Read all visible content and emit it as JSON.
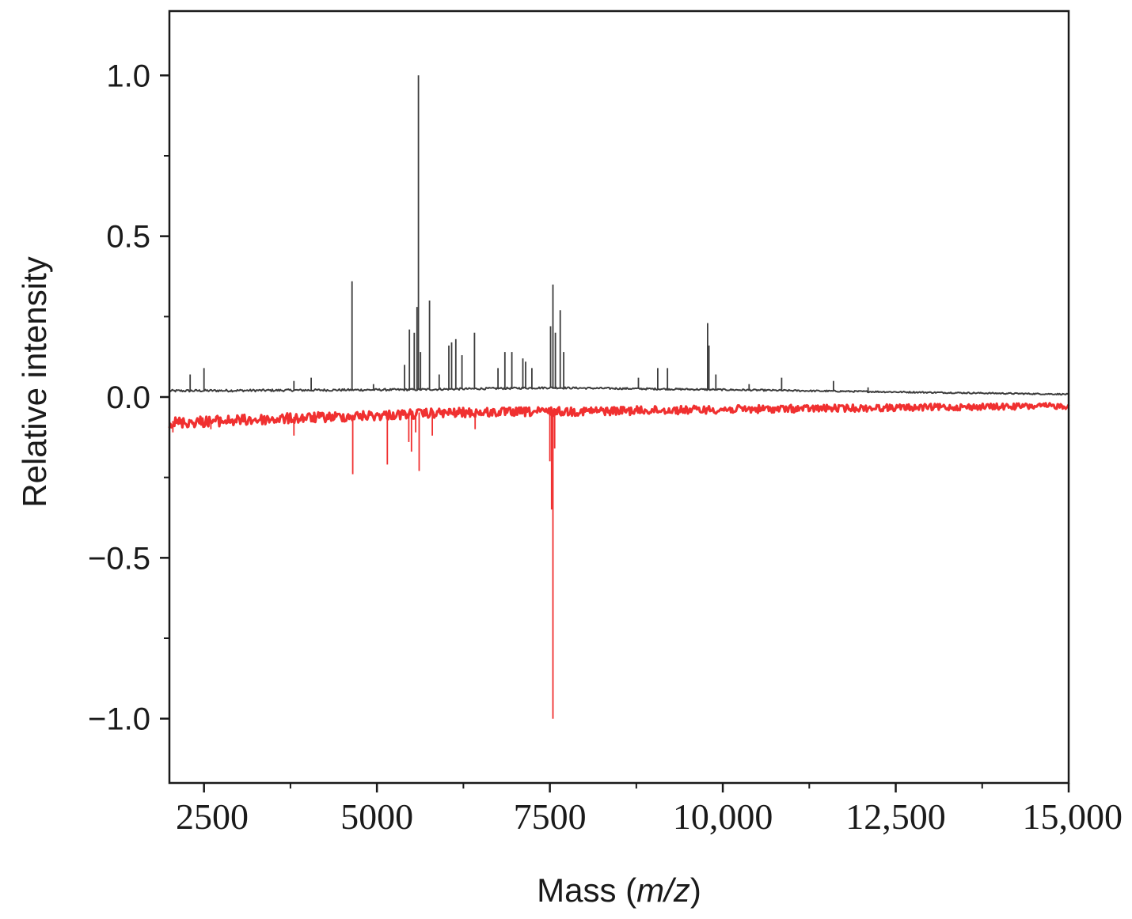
{
  "chart_data": {
    "type": "line",
    "title": "",
    "xlabel": "Mass (m/z)",
    "xlabel_prefix": "Mass (",
    "xlabel_italic": "m/z",
    "xlabel_suffix": ")",
    "ylabel": "Relative intensity",
    "xlim": [
      2000,
      15000
    ],
    "ylim": [
      -1.2,
      1.2
    ],
    "x_ticks": [
      {
        "value": 2500,
        "label": "2500"
      },
      {
        "value": 5000,
        "label": "5000"
      },
      {
        "value": 7500,
        "label": "7500"
      },
      {
        "value": 10000,
        "label": "10,000"
      },
      {
        "value": 12500,
        "label": "12,500"
      },
      {
        "value": 15000,
        "label": "15,000"
      }
    ],
    "x_minor_ticks": [
      3750,
      6250,
      8750,
      11250,
      13750
    ],
    "y_ticks": [
      {
        "value": 1.0,
        "label": "1.0"
      },
      {
        "value": 0.5,
        "label": "0.5"
      },
      {
        "value": 0.0,
        "label": "0.0"
      },
      {
        "value": -0.5,
        "label": "−0.5"
      },
      {
        "value": -1.0,
        "label": "−1.0"
      }
    ],
    "y_minor_ticks": [
      0.75,
      0.25,
      -0.25,
      -0.75
    ],
    "grid": false,
    "legend": "none",
    "series": [
      {
        "color": "#3c3c3c",
        "direction": "up",
        "baseline": [
          [
            2000,
            0.018
          ],
          [
            5500,
            0.022
          ],
          [
            7500,
            0.028
          ],
          [
            10000,
            0.022
          ],
          [
            12500,
            0.015
          ],
          [
            15000,
            0.008
          ]
        ],
        "peaks": [
          {
            "x": 2300,
            "y": 0.07
          },
          {
            "x": 2500,
            "y": 0.09
          },
          {
            "x": 3800,
            "y": 0.05
          },
          {
            "x": 4050,
            "y": 0.06
          },
          {
            "x": 4640,
            "y": 0.36
          },
          {
            "x": 4950,
            "y": 0.04
          },
          {
            "x": 5400,
            "y": 0.1
          },
          {
            "x": 5470,
            "y": 0.21
          },
          {
            "x": 5540,
            "y": 0.2
          },
          {
            "x": 5580,
            "y": 0.28
          },
          {
            "x": 5600,
            "y": 1.0
          },
          {
            "x": 5630,
            "y": 0.14
          },
          {
            "x": 5760,
            "y": 0.3
          },
          {
            "x": 5900,
            "y": 0.07
          },
          {
            "x": 6040,
            "y": 0.16
          },
          {
            "x": 6080,
            "y": 0.17
          },
          {
            "x": 6140,
            "y": 0.18
          },
          {
            "x": 6230,
            "y": 0.13
          },
          {
            "x": 6410,
            "y": 0.2
          },
          {
            "x": 6750,
            "y": 0.09
          },
          {
            "x": 6850,
            "y": 0.14
          },
          {
            "x": 6950,
            "y": 0.14
          },
          {
            "x": 7110,
            "y": 0.12
          },
          {
            "x": 7150,
            "y": 0.11
          },
          {
            "x": 7240,
            "y": 0.09
          },
          {
            "x": 7510,
            "y": 0.22
          },
          {
            "x": 7545,
            "y": 0.35
          },
          {
            "x": 7580,
            "y": 0.2
          },
          {
            "x": 7650,
            "y": 0.27
          },
          {
            "x": 7700,
            "y": 0.14
          },
          {
            "x": 8780,
            "y": 0.06
          },
          {
            "x": 9060,
            "y": 0.09
          },
          {
            "x": 9200,
            "y": 0.09
          },
          {
            "x": 9780,
            "y": 0.23
          },
          {
            "x": 9800,
            "y": 0.16
          },
          {
            "x": 9900,
            "y": 0.07
          },
          {
            "x": 10380,
            "y": 0.04
          },
          {
            "x": 10850,
            "y": 0.06
          },
          {
            "x": 11600,
            "y": 0.05
          },
          {
            "x": 12100,
            "y": 0.03
          }
        ]
      },
      {
        "color": "#f03030",
        "direction": "down",
        "baseline": [
          [
            2000,
            -0.075
          ],
          [
            4000,
            -0.06
          ],
          [
            6000,
            -0.045
          ],
          [
            8000,
            -0.04
          ],
          [
            10000,
            -0.035
          ],
          [
            12500,
            -0.03
          ],
          [
            15000,
            -0.025
          ]
        ],
        "peaks": [
          {
            "x": 2050,
            "y": -0.11
          },
          {
            "x": 2600,
            "y": -0.1
          },
          {
            "x": 3800,
            "y": -0.12
          },
          {
            "x": 4650,
            "y": -0.24
          },
          {
            "x": 5150,
            "y": -0.21
          },
          {
            "x": 5460,
            "y": -0.14
          },
          {
            "x": 5500,
            "y": -0.17
          },
          {
            "x": 5560,
            "y": -0.11
          },
          {
            "x": 5610,
            "y": -0.23
          },
          {
            "x": 5800,
            "y": -0.12
          },
          {
            "x": 6420,
            "y": -0.1
          },
          {
            "x": 7500,
            "y": -0.2
          },
          {
            "x": 7525,
            "y": -0.35
          },
          {
            "x": 7545,
            "y": -1.0
          },
          {
            "x": 7570,
            "y": -0.16
          }
        ]
      }
    ]
  }
}
